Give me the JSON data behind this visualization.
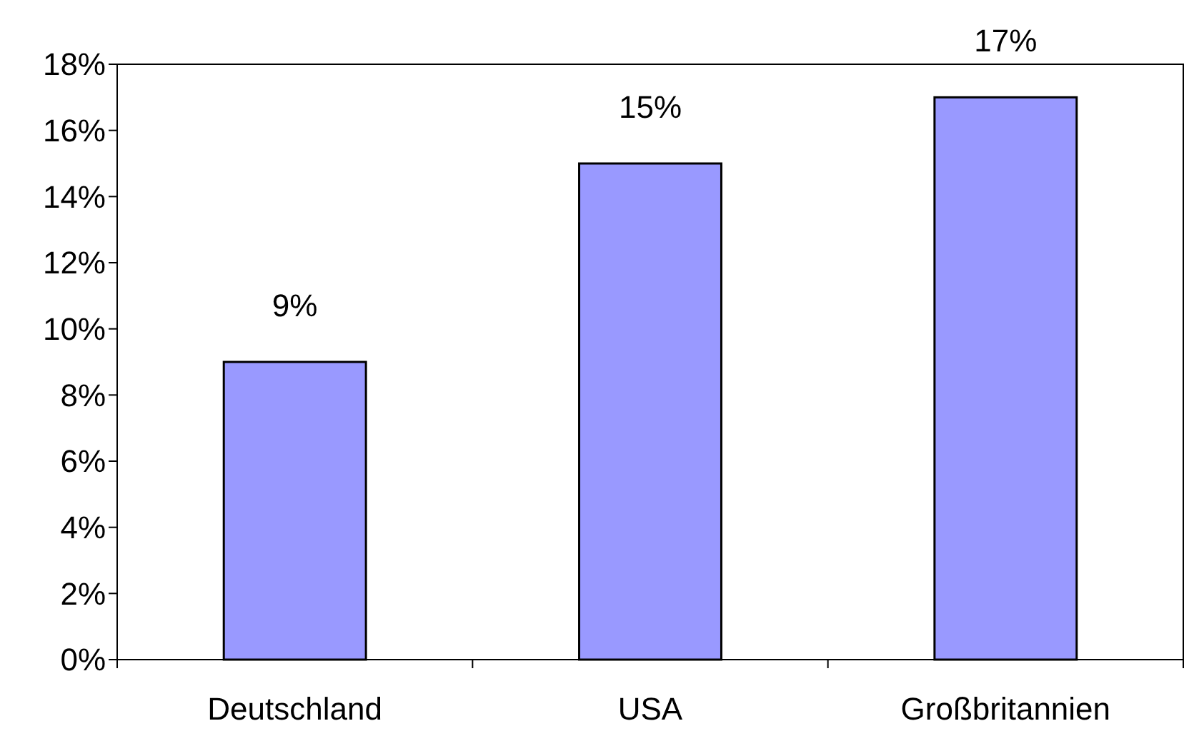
{
  "chart_data": {
    "type": "bar",
    "categories": [
      "Deutschland",
      "USA",
      "Großbritannien"
    ],
    "values": [
      9,
      15,
      17
    ],
    "color": "#9999ff",
    "value_labels": [
      "9%",
      "15%",
      "17%"
    ],
    "ylim": [
      0,
      18
    ],
    "yticks": [
      {
        "value": 0,
        "label": "0%"
      },
      {
        "value": 2,
        "label": "2%"
      },
      {
        "value": 4,
        "label": "4%"
      },
      {
        "value": 6,
        "label": "6%"
      },
      {
        "value": 8,
        "label": "8%"
      },
      {
        "value": 10,
        "label": "10%"
      },
      {
        "value": 12,
        "label": "12%"
      },
      {
        "value": 14,
        "label": "14%"
      },
      {
        "value": 16,
        "label": "16%"
      },
      {
        "value": 18,
        "label": "18%"
      }
    ],
    "grid": false
  }
}
